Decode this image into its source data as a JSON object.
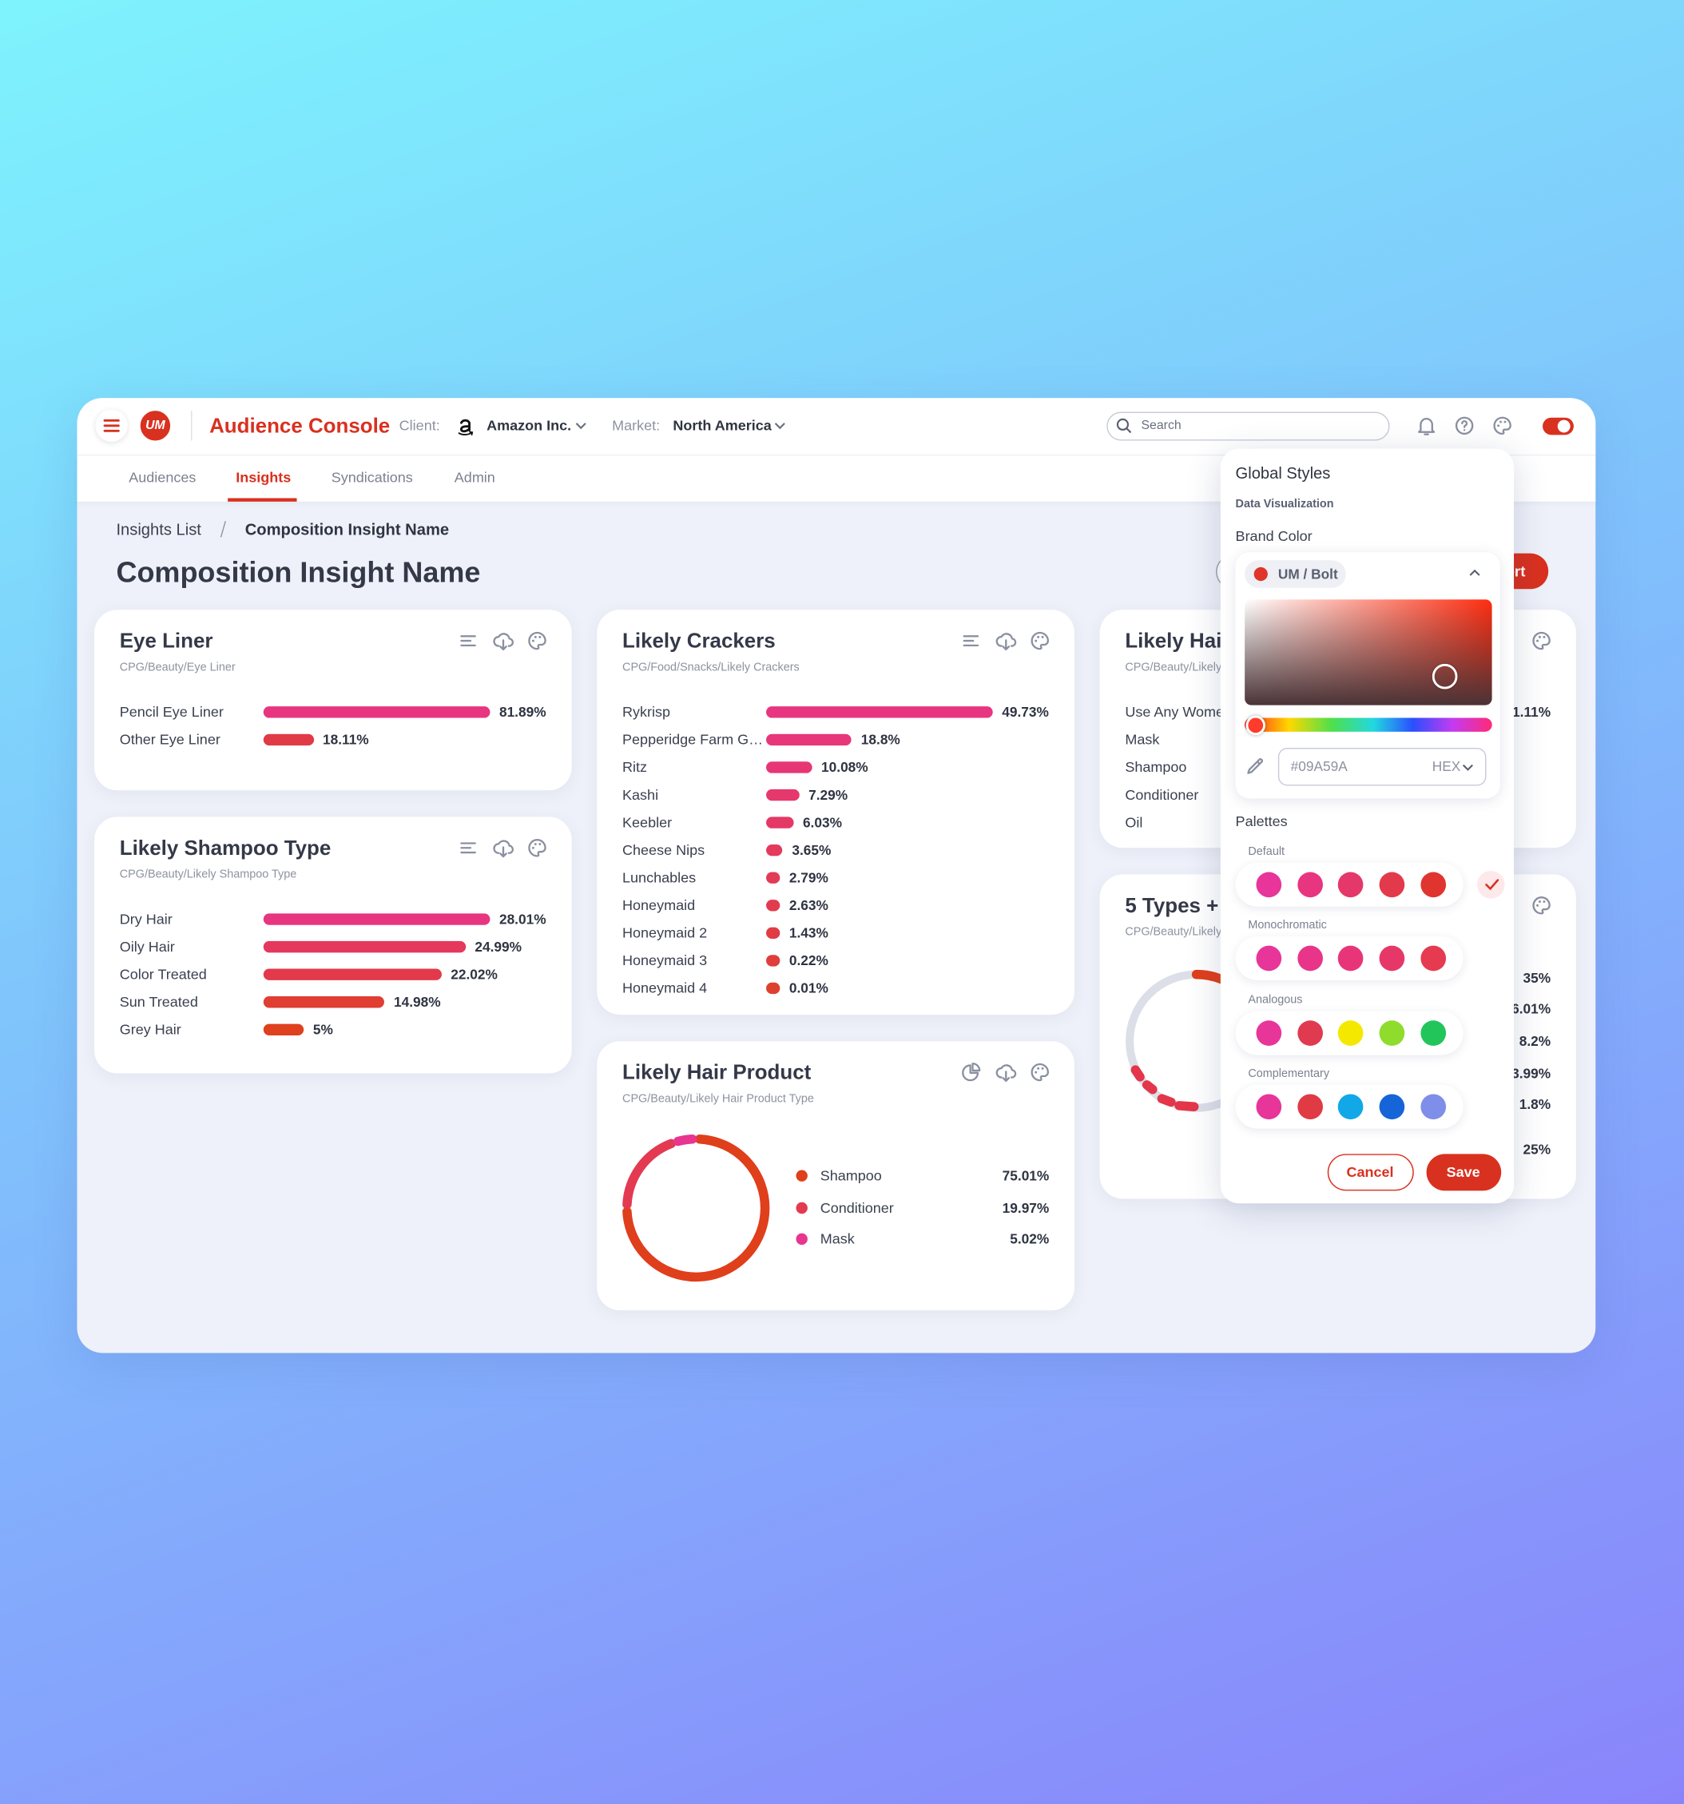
{
  "header": {
    "logo": "UM",
    "app_title": "Audience Console",
    "client_label": "Client:",
    "client": "Amazon Inc.",
    "market_label": "Market:",
    "market": "North America",
    "search_placeholder": "Search"
  },
  "nav": {
    "tabs": [
      "Audiences",
      "Insights",
      "Syndications",
      "Admin"
    ],
    "active": 1
  },
  "breadcrumb": [
    "Insights List",
    "Composition Insight Name"
  ],
  "page_title": "Composition Insight Name",
  "export_button": "Export",
  "cards": [
    {
      "title": "Eye Liner",
      "subtitle": "CPG/Beauty/Eye Liner",
      "labels": [
        "Pencil Eye Liner",
        "Other Eye Liner"
      ],
      "values": [
        81.89,
        18.11
      ],
      "value_labels": [
        "81.89%",
        "18.11%"
      ],
      "colors": [
        "#e8357f",
        "#e03a47"
      ]
    },
    {
      "title": "Likely Shampoo Type",
      "subtitle": "CPG/Beauty/Likely Shampoo Type",
      "labels": [
        "Dry Hair",
        "Oily Hair",
        "Color Treated",
        "Sun Treated",
        "Grey Hair"
      ],
      "values": [
        28.01,
        24.99,
        22.02,
        14.98,
        5
      ],
      "value_labels": [
        "28.01%",
        "24.99%",
        "22.02%",
        "14.98%",
        "5%"
      ],
      "colors": [
        "#e8357f",
        "#e5385d",
        "#e23a4a",
        "#e03d33",
        "#df401e"
      ]
    },
    {
      "title": "Likely Crackers",
      "subtitle": "CPG/Food/Snacks/Likely Crackers",
      "labels": [
        "Rykrisp",
        "Pepperidge Farm G…",
        "Ritz",
        "Kashi",
        "Keebler",
        "Cheese Nips",
        "Lunchables",
        "Honeymaid",
        "Honeymaid 2",
        "Honeymaid 3",
        "Honeymaid 4"
      ],
      "values": [
        49.73,
        18.8,
        10.08,
        7.29,
        6.03,
        3.65,
        2.79,
        2.63,
        1.43,
        0.22,
        0.01
      ],
      "value_labels": [
        "49.73%",
        "18.8%",
        "10.08%",
        "7.29%",
        "6.03%",
        "3.65%",
        "2.79%",
        "2.63%",
        "1.43%",
        "0.22%",
        "0.01%"
      ],
      "colors": [
        "#e8357f",
        "#e7367a",
        "#e63774",
        "#e5386d",
        "#e43966",
        "#e33a5e",
        "#e23b56",
        "#e13c4d",
        "#e03c44",
        "#df3e3a",
        "#de402f"
      ]
    },
    {
      "title": "Likely Hair Product",
      "subtitle": "CPG/Beauty/Likely Hair Product Type",
      "labels": [
        "Shampoo",
        "Conditioner",
        "Mask"
      ],
      "values": [
        75.01,
        19.97,
        5.02
      ],
      "value_labels": [
        "75.01%",
        "19.97%",
        "5.02%"
      ],
      "colors": [
        "#df3f1b",
        "#e33a52",
        "#e8358f"
      ]
    },
    {
      "title": "Likely Hair",
      "subtitle": "CPG/Beauty/Likely",
      "labels": [
        "Use Any Women",
        "Mask",
        "Shampoo",
        "Conditioner",
        "Oil"
      ],
      "value_texts": [
        "1.11%"
      ]
    },
    {
      "title": "5 Types + C",
      "subtitle": "CPG/Beauty/Likely",
      "value_texts": [
        "35%",
        "6.01%",
        "8.2%",
        "3.99%",
        "1.8%",
        "25%"
      ]
    }
  ],
  "popup": {
    "title": "Global Styles",
    "section": "Data Visualization",
    "brand_label": "Brand Color",
    "brand_name": "UM / Bolt",
    "brand_dot": "#e0352a",
    "hex": "#09A59A",
    "format": "HEX",
    "palettes_label": "Palettes",
    "cancel": "Cancel",
    "save": "Save",
    "palettes": [
      {
        "name": "Default",
        "colors": [
          "#e8359a",
          "#e83580",
          "#e5386a",
          "#e33a4b",
          "#e0352f"
        ],
        "selected": true
      },
      {
        "name": "Monochromatic",
        "colors": [
          "#e8359a",
          "#e8358a",
          "#e8357a",
          "#e63868",
          "#e53a50"
        ]
      },
      {
        "name": "Analogous",
        "colors": [
          "#e8359a",
          "#e03a50",
          "#f5e800",
          "#8fdc2c",
          "#22c55a"
        ]
      },
      {
        "name": "Complementary",
        "colors": [
          "#e8359a",
          "#e03a45",
          "#12a8e8",
          "#1565d8",
          "#7f8ee8"
        ]
      }
    ]
  }
}
